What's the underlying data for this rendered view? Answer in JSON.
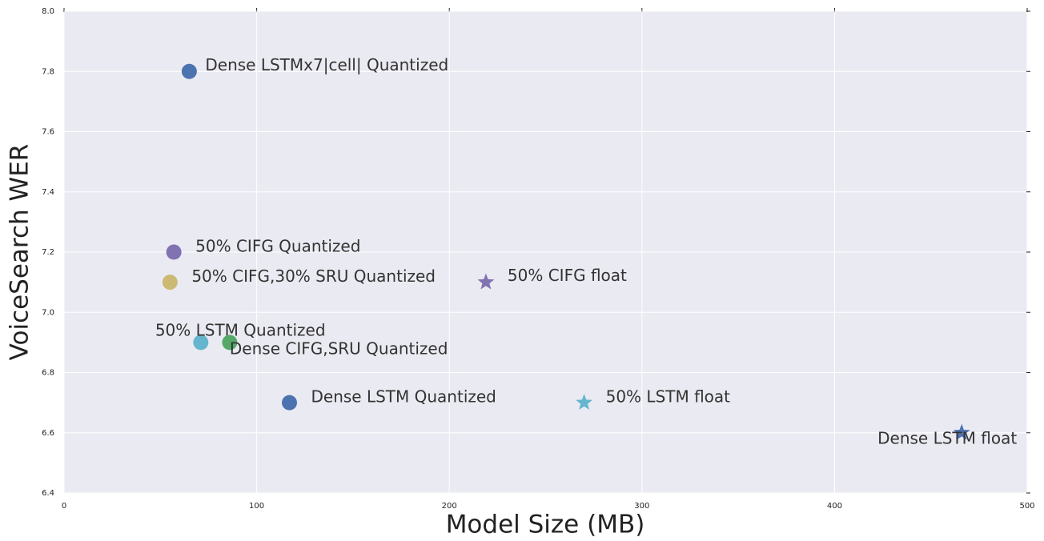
{
  "chart_data": {
    "type": "scatter",
    "xlabel": "Model Size (MB)",
    "ylabel": "VoiceSearch WER",
    "xlim": [
      0,
      500
    ],
    "xticks": [
      0,
      100,
      200,
      300,
      400,
      500
    ],
    "ylim": [
      6.4,
      8.0
    ],
    "yticks": [
      6.4,
      6.6,
      6.8,
      {
        "value": 7,
        "label": "7.0"
      },
      7.2,
      7.4,
      7.6,
      7.8,
      {
        "value": 8,
        "label": "8.0"
      }
    ],
    "grid": true,
    "series": [
      {
        "name": "Dense LSTMx7|cell| Quantized",
        "color": "#4c72b0",
        "marker": "circle",
        "x": [
          65
        ],
        "values": [
          7.8
        ]
      },
      {
        "name": "50% CIFG Quantized",
        "color": "#8172b2",
        "marker": "circle",
        "x": [
          57
        ],
        "values": [
          7.2
        ]
      },
      {
        "name": "50% CIFG,30% SRU Quantized",
        "color": "#ccb974",
        "marker": "circle",
        "x": [
          55
        ],
        "values": [
          7.1
        ]
      },
      {
        "name": "50% CIFG float",
        "color": "#8172b2",
        "marker": "star",
        "x": [
          219
        ],
        "values": [
          7.1
        ]
      },
      {
        "name": "50% LSTM Quantized",
        "color": "#64b5cd",
        "marker": "circle",
        "x": [
          71
        ],
        "values": [
          6.9
        ]
      },
      {
        "name": "Dense CIFG,SRU Quantized",
        "color": "#55a868",
        "marker": "circle",
        "x": [
          86
        ],
        "values": [
          6.9
        ]
      },
      {
        "name": "Dense LSTM Quantized",
        "color": "#4c72b0",
        "marker": "circle",
        "x": [
          117
        ],
        "values": [
          6.7
        ]
      },
      {
        "name": "50% LSTM float",
        "color": "#64b5cd",
        "marker": "star",
        "x": [
          270
        ],
        "values": [
          6.7
        ]
      },
      {
        "name": "Dense LSTM float",
        "color": "#4c72b0",
        "marker": "star",
        "x": [
          466
        ],
        "values": [
          6.6
        ]
      }
    ]
  }
}
